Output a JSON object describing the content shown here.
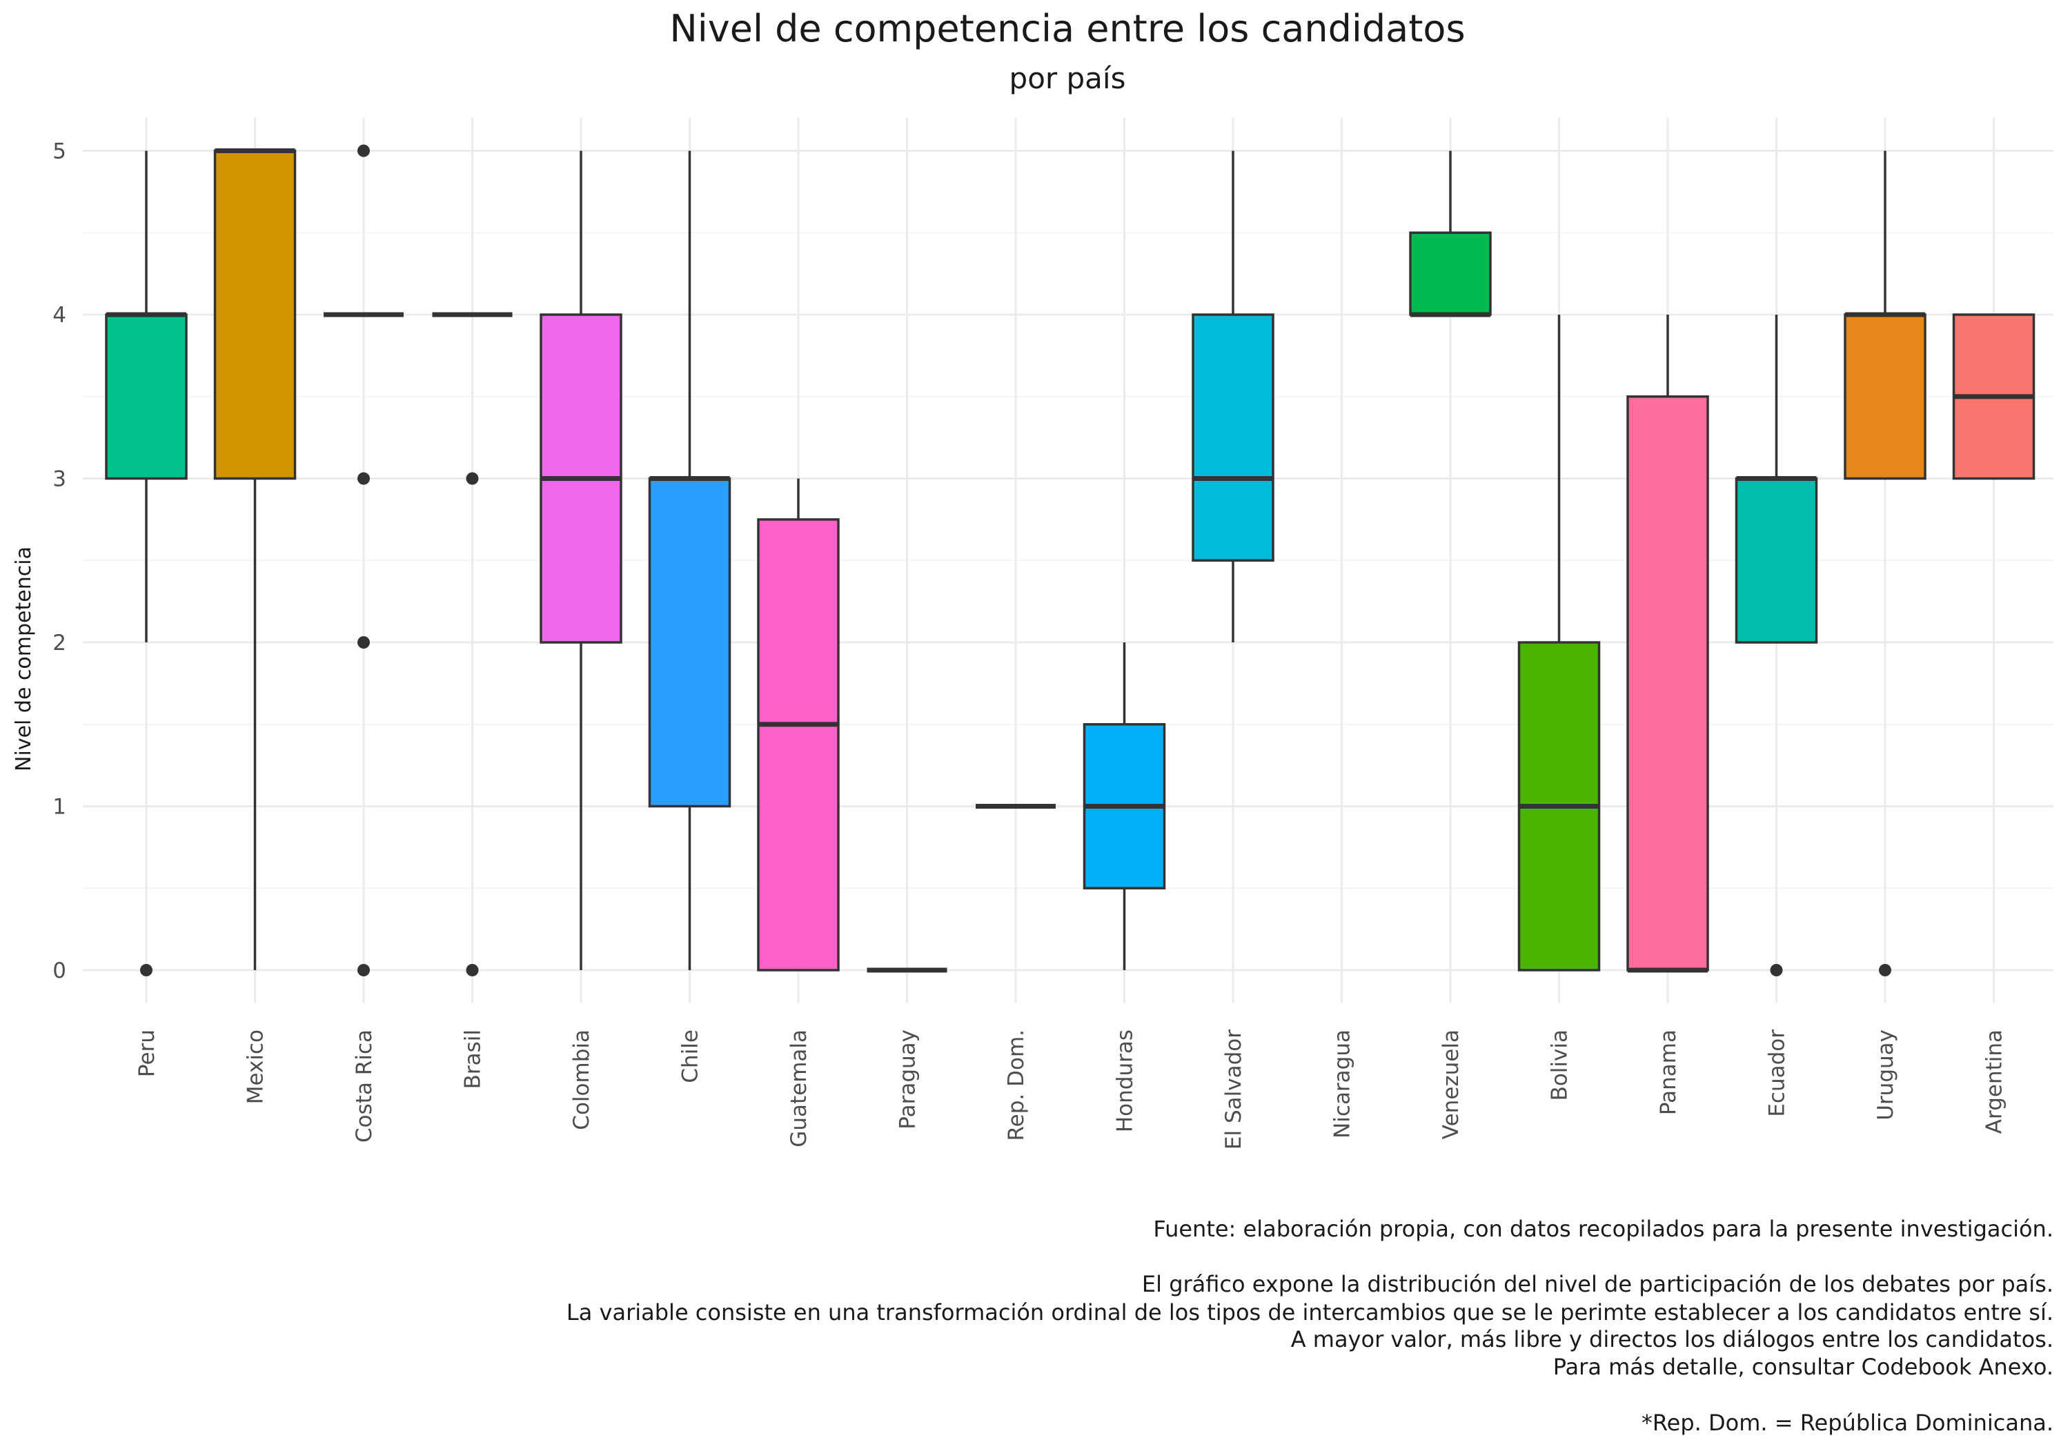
{
  "chart_data": {
    "type": "boxplot",
    "title": "Nivel de competencia  entre los candidatos",
    "subtitle": "por país",
    "xlabel": "",
    "ylabel": "Nivel de competencia",
    "ylim": [
      -0.2,
      5.2
    ],
    "yticks": [
      0,
      1,
      2,
      3,
      4,
      5
    ],
    "grid": true,
    "legend": "none",
    "categories": [
      "Peru",
      "Mexico",
      "Costa Rica",
      "Brasil",
      "Colombia",
      "Chile",
      "Guatemala",
      "Paraguay",
      "Rep. Dom.",
      "Honduras",
      "El Salvador",
      "Nicaragua",
      "Venezuela",
      "Bolivia",
      "Panama",
      "Ecuador",
      "Uruguay",
      "Argentina"
    ],
    "boxes": [
      {
        "category": "Peru",
        "q1": 3,
        "median": 4,
        "q3": 4,
        "whisker_low": 2,
        "whisker_high": 5,
        "outliers": [
          0
        ],
        "color": "#00C08B"
      },
      {
        "category": "Mexico",
        "q1": 3,
        "median": 5,
        "q3": 5,
        "whisker_low": 0,
        "whisker_high": 5,
        "outliers": [],
        "color": "#CF9400"
      },
      {
        "category": "Costa Rica",
        "q1": 4,
        "median": 4,
        "q3": 4,
        "whisker_low": 4,
        "whisker_high": 4,
        "outliers": [
          5,
          3,
          2,
          0
        ],
        "color": "#DE8C00"
      },
      {
        "category": "Brasil",
        "q1": 4,
        "median": 4,
        "q3": 4,
        "whisker_low": 4,
        "whisker_high": 4,
        "outliers": [
          3,
          0
        ],
        "color": "#B79F00"
      },
      {
        "category": "Colombia",
        "q1": 2,
        "median": 3,
        "q3": 4,
        "whisker_low": 0,
        "whisker_high": 5,
        "outliers": [],
        "color": "#EF67EB"
      },
      {
        "category": "Chile",
        "q1": 1,
        "median": 3,
        "q3": 3,
        "whisker_low": 0,
        "whisker_high": 5,
        "outliers": [],
        "color": "#2A9DFF"
      },
      {
        "category": "Guatemala",
        "q1": 0,
        "median": 1.5,
        "q3": 2.75,
        "whisker_low": 0,
        "whisker_high": 3,
        "outliers": [],
        "color": "#FF61C9"
      },
      {
        "category": "Paraguay",
        "q1": 0,
        "median": 0,
        "q3": 0,
        "whisker_low": 0,
        "whisker_high": 0,
        "outliers": [],
        "color": "#AC88FF"
      },
      {
        "category": "Rep. Dom.",
        "q1": 1,
        "median": 1,
        "q3": 1,
        "whisker_low": 1,
        "whisker_high": 1,
        "outliers": [],
        "color": "#C77CFF"
      },
      {
        "category": "Honduras",
        "q1": 0.5,
        "median": 1,
        "q3": 1.5,
        "whisker_low": 0,
        "whisker_high": 2,
        "outliers": [],
        "color": "#00B0F6"
      },
      {
        "category": "El Salvador",
        "q1": 2.5,
        "median": 3,
        "q3": 4,
        "whisker_low": 2,
        "whisker_high": 5,
        "outliers": [],
        "color": "#00BCD8"
      },
      {
        "category": "Nicaragua",
        "q1": null,
        "median": null,
        "q3": null,
        "whisker_low": null,
        "whisker_high": null,
        "outliers": [],
        "color": "#00BF7D"
      },
      {
        "category": "Venezuela",
        "q1": 4,
        "median": 4,
        "q3": 4.5,
        "whisker_low": 4,
        "whisker_high": 5,
        "outliers": [],
        "color": "#00BA50"
      },
      {
        "category": "Bolivia",
        "q1": 0,
        "median": 1,
        "q3": 2,
        "whisker_low": 0,
        "whisker_high": 4,
        "outliers": [],
        "color": "#4AB500"
      },
      {
        "category": "Panama",
        "q1": 0,
        "median": 0,
        "q3": 3.5,
        "whisker_low": 0,
        "whisker_high": 4,
        "outliers": [],
        "color": "#FF6C9E"
      },
      {
        "category": "Ecuador",
        "q1": 2,
        "median": 3,
        "q3": 3,
        "whisker_low": 2,
        "whisker_high": 4,
        "outliers": [
          0
        ],
        "color": "#00BEAE"
      },
      {
        "category": "Uruguay",
        "q1": 3,
        "median": 4,
        "q3": 4,
        "whisker_low": 3,
        "whisker_high": 5,
        "outliers": [
          0
        ],
        "color": "#E7861B"
      },
      {
        "category": "Argentina",
        "q1": 3,
        "median": 3.5,
        "q3": 4,
        "whisker_low": 3,
        "whisker_high": 4,
        "outliers": [],
        "color": "#F8766D"
      }
    ]
  },
  "caption": {
    "line1": "Fuente: elaboración propia, con datos recopilados para la presente investigación.",
    "line2": "El gráfico expone la distribución del nivel de participación de los debates por país.",
    "line3": "La variable consiste en una transformación ordinal de los tipos de intercambios que se le perimte establecer a los candidatos entre sí.",
    "line4": "A mayor valor, más libre y directos los diálogos entre los candidatos.",
    "line5": "Para más detalle, consultar Codebook Anexo.",
    "line6": "*Rep. Dom. = República Dominicana."
  },
  "colors": {
    "grid_major": "#EBEBEB",
    "grid_minor": "#F5F5F5",
    "box_outline": "#333333"
  }
}
